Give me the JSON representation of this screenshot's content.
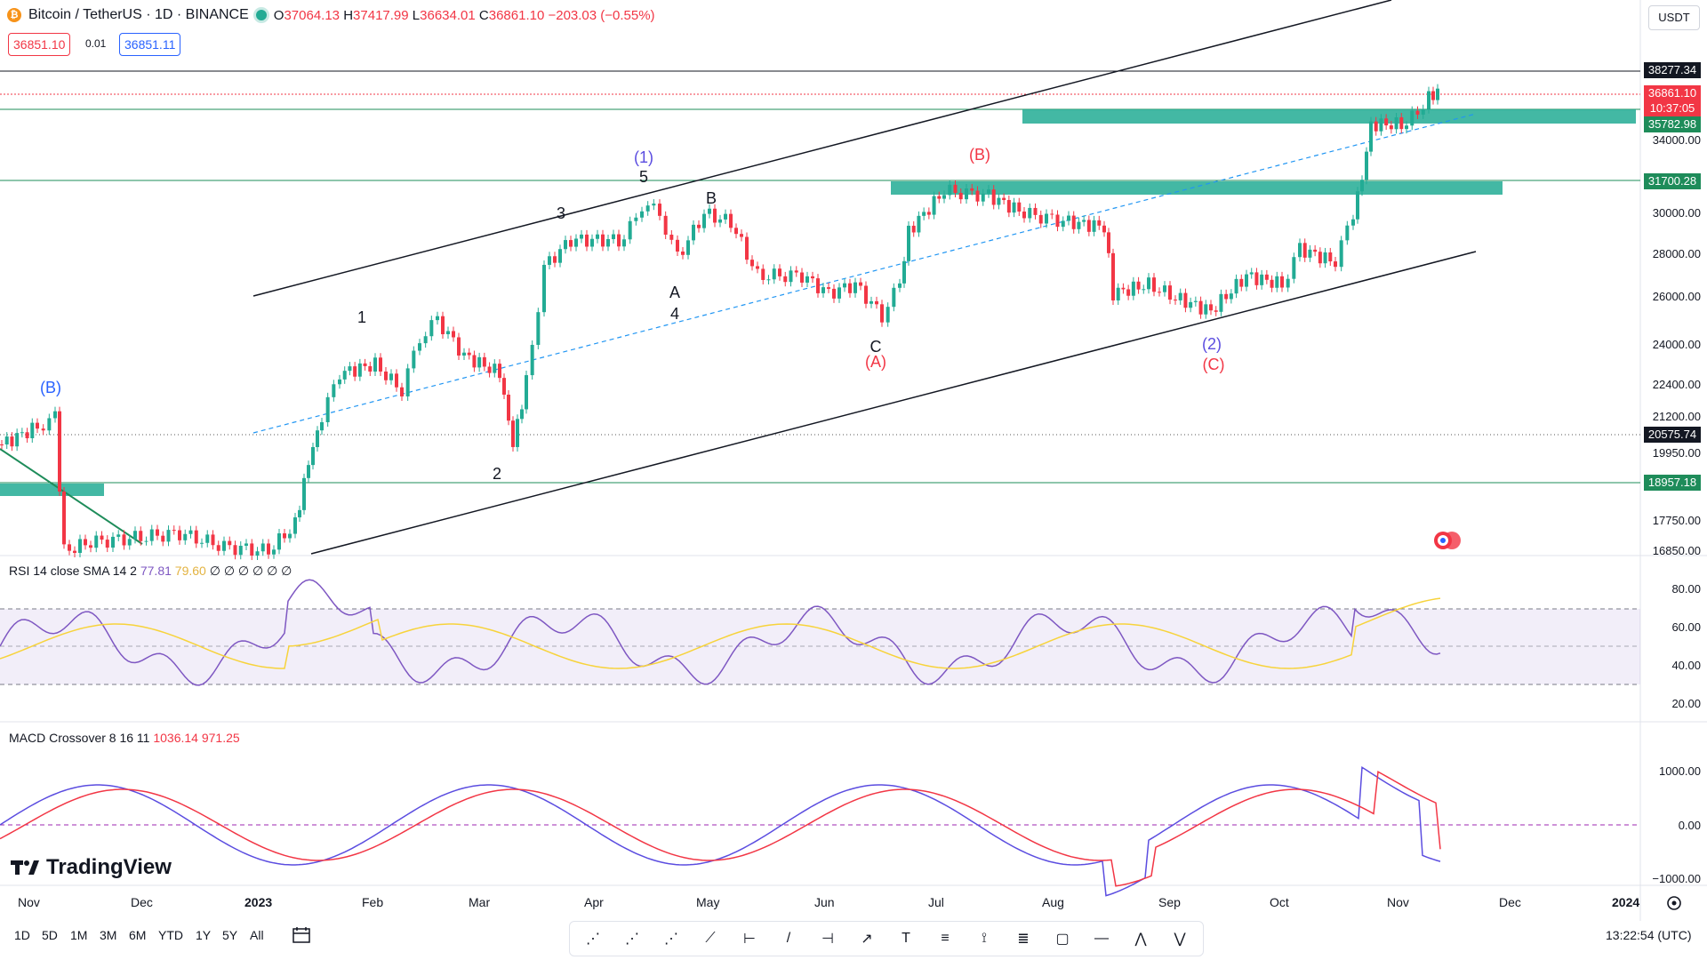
{
  "header": {
    "symbol": "Bitcoin / TetherUS · 1D · BINANCE",
    "open_label": "O",
    "open": "37064.13",
    "high_label": "H",
    "high": "37417.99",
    "low_label": "L",
    "low": "36634.01",
    "close_label": "C",
    "close": "36861.10 −203.03 (−0.55%)",
    "sell_price": "36851.10",
    "spread": "0.01",
    "buy_price": "36851.11",
    "currency": "USDT"
  },
  "colors": {
    "up": "#22ab94",
    "down": "#f23645",
    "zone": "#22ab94",
    "accent": "#2962ff"
  },
  "price_axis": [
    "34000.00",
    "30000.00",
    "28000.00",
    "26000.00",
    "24000.00",
    "22400.00",
    "21200.00",
    "19950.00",
    "17750.00",
    "16850.00"
  ],
  "price_tags": {
    "high_line": "38277.34",
    "last_price": "36861.10",
    "countdown": "10:37:05",
    "zone_top": "35782.98",
    "zone_mid": "31700.28",
    "level_low": "20575.74",
    "level_bottom": "18957.18"
  },
  "time_axis": [
    "Nov",
    "Dec",
    "2023",
    "Feb",
    "Mar",
    "Apr",
    "May",
    "Jun",
    "Jul",
    "Aug",
    "Sep",
    "Oct",
    "Nov",
    "Dec",
    "2024"
  ],
  "waves": {
    "w_b_left": "(B)",
    "w1": "1",
    "w2": "2",
    "w3": "3",
    "w4": "4",
    "w5": "5",
    "w_1_paren": "(1)",
    "wA": "A",
    "wB": "B",
    "wC": "C",
    "w_A_paren": "(A)",
    "w_B_paren": "(B)",
    "w_2_paren": "(2)",
    "w_C_paren": "(C)"
  },
  "rsi": {
    "label": "RSI 14 close SMA 14 2",
    "value1": "77.81",
    "value2": "79.60",
    "empty_markers": "∅ ∅ ∅ ∅ ∅ ∅",
    "axis": [
      "80.00",
      "60.00",
      "40.00",
      "20.00"
    ]
  },
  "macd": {
    "label": "MACD Crossover 8 16 11",
    "value1": "1036.14",
    "value2": "971.25",
    "axis": [
      "1000.00",
      "0.00",
      "−1000.00"
    ]
  },
  "timeframes": [
    "1D",
    "5D",
    "1M",
    "3M",
    "6M",
    "YTD",
    "1Y",
    "5Y",
    "All"
  ],
  "clock": "13:22:54 (UTC)",
  "logo": "TradingView",
  "tools": [
    "abc-pattern-icon",
    "abc-pattern-2-icon",
    "wave-15-icon",
    "trendline-icon",
    "cursor-line-icon",
    "line-icon",
    "date-range-icon",
    "arrow-icon",
    "text-icon",
    "horizontal-lines-icon",
    "path-icon",
    "price-range-icon",
    "rectangle-icon",
    "horizontal-ray-icon",
    "wxy-icon",
    "wxy-2-icon"
  ]
}
